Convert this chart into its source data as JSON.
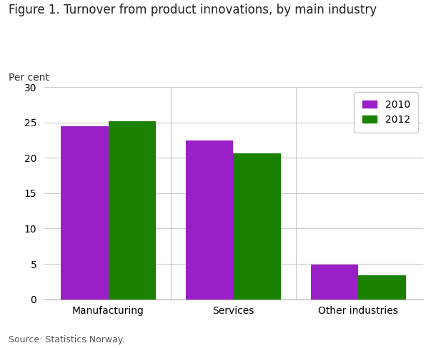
{
  "title": "Figure 1. Turnover from product innovations, by main industry",
  "ylabel": "Per cent",
  "source": "Source: Statistics Norway.",
  "categories": [
    "Manufacturing",
    "Services",
    "Other industries"
  ],
  "series": {
    "2010": [
      24.5,
      22.4,
      4.9
    ],
    "2012": [
      25.2,
      20.6,
      3.4
    ]
  },
  "colors": {
    "2010": "#9a1fc7",
    "2012": "#1a8200"
  },
  "ylim": [
    0,
    30
  ],
  "yticks": [
    0,
    5,
    10,
    15,
    20,
    25,
    30
  ],
  "bar_width": 0.38,
  "background_color": "#ffffff",
  "grid_color": "#cccccc",
  "title_fontsize": 12,
  "tick_fontsize": 10,
  "legend_fontsize": 10,
  "source_fontsize": 9
}
